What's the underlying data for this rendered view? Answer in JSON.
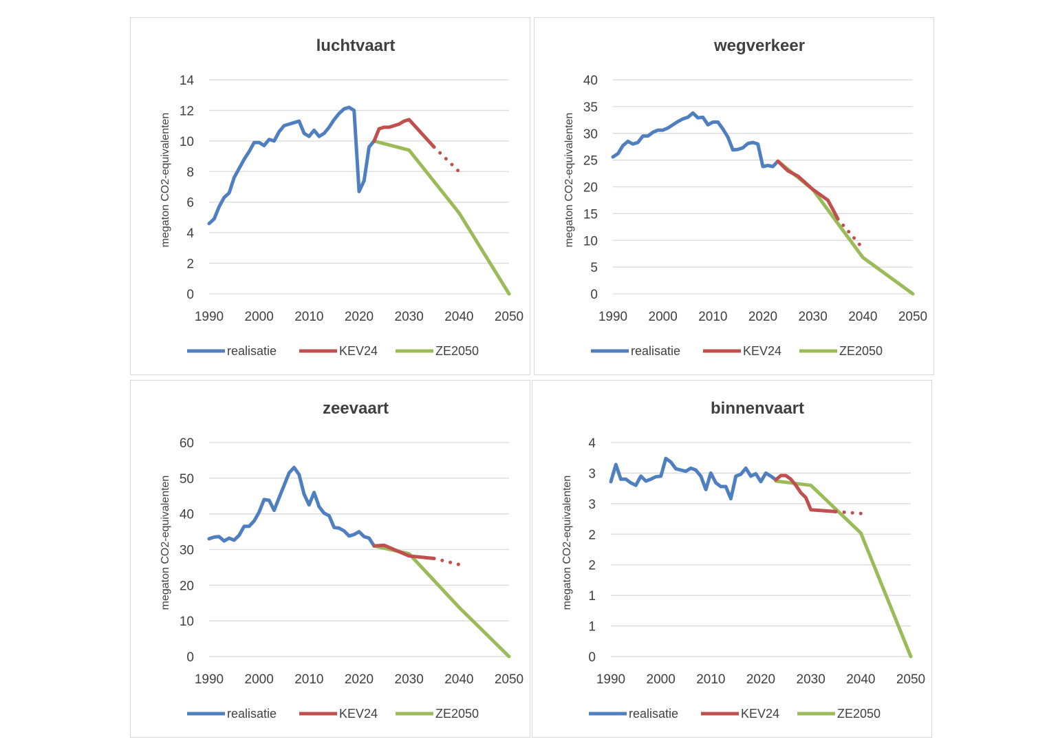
{
  "colors": {
    "realisatie": "#4f7fbf",
    "KEV24": "#c0504d",
    "ZE2050": "#9bbb59",
    "grid": "#d9d9d9",
    "text": "#404040"
  },
  "chart_data": [
    {
      "type": "line",
      "title": "luchtvaart",
      "ylabel": "megaton CO2-equivalenten",
      "xlim": [
        1990,
        2050
      ],
      "ylim": [
        0,
        14
      ],
      "x_ticks": [
        "1990",
        "2000",
        "2010",
        "2020",
        "2030",
        "2040",
        "2050"
      ],
      "y_ticks": [
        "0",
        "2",
        "4",
        "6",
        "8",
        "10",
        "12",
        "14"
      ],
      "legend": "bottom",
      "grid": true,
      "series": [
        {
          "name": "realisatie",
          "x": [
            1990,
            1991,
            1992,
            1993,
            1994,
            1995,
            1996,
            1997,
            1998,
            1999,
            2000,
            2001,
            2002,
            2003,
            2004,
            2005,
            2006,
            2007,
            2008,
            2009,
            2010,
            2011,
            2012,
            2013,
            2014,
            2015,
            2016,
            2017,
            2018,
            2019,
            2020,
            2021,
            2022,
            2023
          ],
          "y": [
            4.6,
            4.9,
            5.7,
            6.3,
            6.6,
            7.6,
            8.2,
            8.8,
            9.3,
            9.9,
            9.9,
            9.7,
            10.1,
            10.0,
            10.6,
            11.0,
            11.1,
            11.2,
            11.3,
            10.5,
            10.3,
            10.7,
            10.3,
            10.5,
            10.9,
            11.4,
            11.8,
            12.1,
            12.2,
            12.0,
            6.7,
            7.4,
            9.6,
            10.0
          ]
        },
        {
          "name": "KEV24",
          "x": [
            2023,
            2024,
            2025,
            2026,
            2027,
            2028,
            2029,
            2030,
            2035
          ],
          "y": [
            10.0,
            10.8,
            10.9,
            10.9,
            11.0,
            11.1,
            11.3,
            11.4,
            9.6
          ],
          "projection": {
            "x": [
              2035,
              2040
            ],
            "y": [
              9.6,
              8.0
            ]
          }
        },
        {
          "name": "ZE2050",
          "x": [
            2023,
            2030,
            2040,
            2050
          ],
          "y": [
            10.0,
            9.4,
            5.3,
            0.0
          ]
        }
      ]
    },
    {
      "type": "line",
      "title": "wegverkeer",
      "ylabel": "megaton CO2-equivalenten",
      "xlim": [
        1990,
        2050
      ],
      "ylim": [
        0,
        40
      ],
      "x_ticks": [
        "1990",
        "2000",
        "2010",
        "2020",
        "2030",
        "2040",
        "2050"
      ],
      "y_ticks": [
        "0",
        "5",
        "10",
        "15",
        "20",
        "25",
        "30",
        "35",
        "40"
      ],
      "legend": "bottom",
      "grid": true,
      "series": [
        {
          "name": "realisatie",
          "x": [
            1990,
            1991,
            1992,
            1993,
            1994,
            1995,
            1996,
            1997,
            1998,
            1999,
            2000,
            2001,
            2002,
            2003,
            2004,
            2005,
            2006,
            2007,
            2008,
            2009,
            2010,
            2011,
            2012,
            2013,
            2014,
            2015,
            2016,
            2017,
            2018,
            2019,
            2020,
            2021,
            2022,
            2023
          ],
          "y": [
            25.6,
            26.2,
            27.7,
            28.5,
            28.0,
            28.3,
            29.5,
            29.5,
            30.2,
            30.6,
            30.6,
            31.0,
            31.6,
            32.2,
            32.7,
            33.0,
            33.8,
            32.9,
            33.0,
            31.6,
            32.1,
            32.1,
            30.8,
            29.3,
            26.9,
            27.0,
            27.3,
            28.1,
            28.3,
            28.0,
            23.8,
            24.0,
            23.8,
            24.8
          ]
        },
        {
          "name": "KEV24",
          "x": [
            2023,
            2025,
            2027,
            2030,
            2033,
            2035
          ],
          "y": [
            24.8,
            23.0,
            22.0,
            19.5,
            17.5,
            14.0
          ],
          "projection": {
            "x": [
              2035,
              2040
            ],
            "y": [
              14.0,
              8.5
            ]
          }
        },
        {
          "name": "ZE2050",
          "x": [
            2023,
            2030,
            2040,
            2050
          ],
          "y": [
            24.8,
            19.5,
            6.8,
            0.0
          ]
        }
      ]
    },
    {
      "type": "line",
      "title": "zeevaart",
      "ylabel": "megaton CO2-equivalenten",
      "xlim": [
        1990,
        2050
      ],
      "ylim": [
        0,
        60
      ],
      "x_ticks": [
        "1990",
        "2000",
        "2010",
        "2020",
        "2030",
        "2040",
        "2050"
      ],
      "y_ticks": [
        "0",
        "10",
        "20",
        "30",
        "40",
        "50",
        "60"
      ],
      "legend": "bottom",
      "grid": true,
      "series": [
        {
          "name": "realisatie",
          "x": [
            1990,
            1991,
            1992,
            1993,
            1994,
            1995,
            1996,
            1997,
            1998,
            1999,
            2000,
            2001,
            2002,
            2003,
            2004,
            2005,
            2006,
            2007,
            2008,
            2009,
            2010,
            2011,
            2012,
            2013,
            2014,
            2015,
            2016,
            2017,
            2018,
            2019,
            2020,
            2021,
            2022,
            2023
          ],
          "y": [
            33.0,
            33.5,
            33.6,
            32.4,
            33.2,
            32.6,
            34.0,
            36.5,
            36.5,
            38.0,
            40.5,
            44.0,
            43.8,
            41.0,
            44.5,
            48.0,
            51.5,
            53.0,
            51.0,
            45.5,
            42.5,
            46.0,
            42.0,
            40.2,
            39.5,
            36.2,
            36.0,
            35.2,
            33.8,
            34.2,
            35.0,
            33.6,
            33.2,
            31.0
          ]
        },
        {
          "name": "KEV24",
          "x": [
            2023,
            2025,
            2030,
            2035
          ],
          "y": [
            31.0,
            31.2,
            28.2,
            27.5
          ],
          "projection": {
            "x": [
              2035,
              2040
            ],
            "y": [
              27.5,
              25.8
            ]
          }
        },
        {
          "name": "ZE2050",
          "x": [
            2023,
            2030,
            2040,
            2050
          ],
          "y": [
            31.0,
            28.8,
            13.8,
            0.0
          ]
        }
      ]
    },
    {
      "type": "line",
      "title": "binnenvaart",
      "ylabel": "megaton CO2-equivalenten",
      "xlim": [
        1990,
        2050
      ],
      "ylim": [
        0,
        3.5
      ],
      "x_ticks": [
        "1990",
        "2000",
        "2010",
        "2020",
        "2030",
        "2040",
        "2050"
      ],
      "y_ticks": [
        "0",
        "1",
        "1",
        "2",
        "2",
        "3",
        "3",
        "4"
      ],
      "legend": "bottom",
      "grid": true,
      "series": [
        {
          "name": "realisatie",
          "x": [
            1990,
            1991,
            1992,
            1993,
            1994,
            1995,
            1996,
            1997,
            1998,
            1999,
            2000,
            2001,
            2002,
            2003,
            2004,
            2005,
            2006,
            2007,
            2008,
            2009,
            2010,
            2011,
            2012,
            2013,
            2014,
            2015,
            2016,
            2017,
            2018,
            2019,
            2020,
            2021,
            2022,
            2023
          ],
          "y": [
            2.86,
            3.14,
            2.9,
            2.9,
            2.84,
            2.8,
            2.95,
            2.87,
            2.9,
            2.94,
            2.95,
            3.24,
            3.18,
            3.07,
            3.05,
            3.03,
            3.08,
            3.05,
            2.95,
            2.73,
            3.0,
            2.84,
            2.78,
            2.78,
            2.58,
            2.95,
            2.98,
            3.08,
            2.95,
            2.99,
            2.86,
            3.0,
            2.95,
            2.89
          ]
        },
        {
          "name": "KEV24",
          "x": [
            2023,
            2024,
            2025,
            2026,
            2027,
            2028,
            2029,
            2030,
            2035
          ],
          "y": [
            2.89,
            2.96,
            2.96,
            2.9,
            2.8,
            2.68,
            2.6,
            2.4,
            2.37
          ],
          "projection": {
            "x": [
              2035,
              2040
            ],
            "y": [
              2.37,
              2.34
            ]
          }
        },
        {
          "name": "ZE2050",
          "x": [
            2023,
            2030,
            2040,
            2050
          ],
          "y": [
            2.87,
            2.8,
            2.02,
            0.0
          ]
        }
      ]
    }
  ]
}
